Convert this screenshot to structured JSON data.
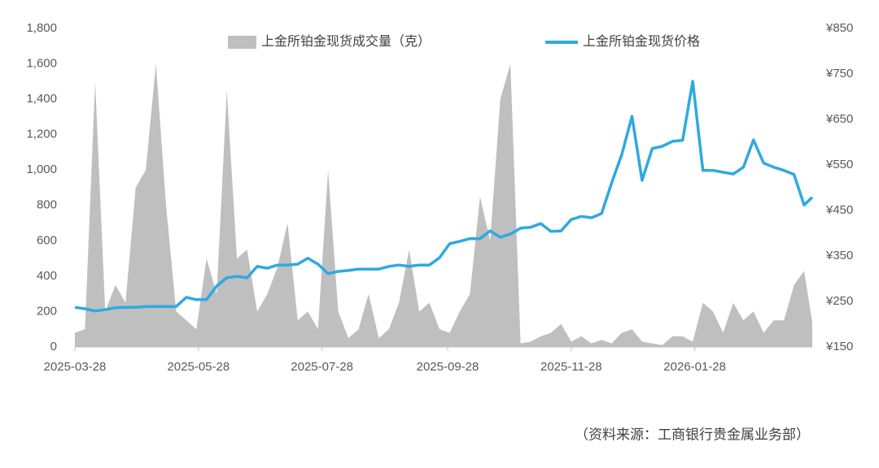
{
  "chart_data": {
    "type": "area-line",
    "x": [
      "2025-03-28",
      "2025-04-02",
      "2025-04-07",
      "2025-04-12",
      "2025-04-17",
      "2025-04-22",
      "2025-04-27",
      "2025-05-02",
      "2025-05-07",
      "2025-05-12",
      "2025-05-17",
      "2025-05-22",
      "2025-05-27",
      "2025-06-01",
      "2025-06-06",
      "2025-06-11",
      "2025-06-16",
      "2025-06-21",
      "2025-06-26",
      "2025-07-01",
      "2025-07-06",
      "2025-07-11",
      "2025-07-16",
      "2025-07-21",
      "2025-07-26",
      "2025-07-31",
      "2025-08-05",
      "2025-08-10",
      "2025-08-15",
      "2025-08-20",
      "2025-08-25",
      "2025-08-30",
      "2025-09-04",
      "2025-09-09",
      "2025-09-14",
      "2025-09-19",
      "2025-09-24",
      "2025-09-29",
      "2025-10-04",
      "2025-10-09",
      "2025-10-14",
      "2025-10-19",
      "2025-10-24",
      "2025-10-29",
      "2025-11-03",
      "2025-11-08",
      "2025-11-13",
      "2025-11-18",
      "2025-11-23",
      "2025-11-28",
      "2025-12-03",
      "2025-12-08",
      "2025-12-13",
      "2025-12-18",
      "2025-12-23",
      "2025-12-28",
      "2026-01-02",
      "2026-01-07",
      "2026-01-12",
      "2026-01-17",
      "2026-01-22",
      "2026-01-27",
      "2026-02-01",
      "2026-02-06",
      "2026-02-11",
      "2026-02-16",
      "2026-02-21",
      "2026-02-26",
      "2026-03-03",
      "2026-03-08",
      "2026-03-13",
      "2026-03-18",
      "2026-03-23",
      "2026-03-27"
    ],
    "series": [
      {
        "name": "上金所铂金现货成交量（克）",
        "color": "#bfbfbf",
        "kind": "area",
        "values": [
          80,
          100,
          1500,
          200,
          350,
          250,
          900,
          1000,
          1600,
          800,
          200,
          150,
          100,
          500,
          300,
          1450,
          500,
          550,
          200,
          300,
          450,
          700,
          150,
          200,
          100,
          1000,
          200,
          50,
          100,
          300,
          50,
          100,
          250,
          550,
          200,
          250,
          100,
          80,
          200,
          300,
          850,
          600,
          1400,
          1600,
          20,
          30,
          60,
          80,
          130,
          30,
          60,
          20,
          40,
          20,
          80,
          100,
          30,
          20,
          10,
          60,
          60,
          30,
          250,
          200,
          80,
          250,
          150,
          200,
          80,
          150,
          150,
          350,
          430,
          140
        ]
      },
      {
        "name": "上金所铂金现货价格",
        "color": "#2fa9e0",
        "kind": "line",
        "axis": "y2",
        "values": [
          237,
          234,
          229,
          232,
          236,
          237,
          237,
          239,
          239,
          239,
          239,
          259,
          254,
          254,
          284,
          302,
          305,
          302,
          327,
          323,
          330,
          330,
          332,
          345,
          332,
          311,
          316,
          318,
          321,
          321,
          321,
          327,
          330,
          327,
          330,
          330,
          346,
          377,
          382,
          388,
          388,
          405,
          391,
          398,
          411,
          413,
          421,
          404,
          405,
          430,
          437,
          434,
          443,
          511,
          573,
          657,
          516,
          586,
          591,
          602,
          604,
          734,
          538,
          538,
          534,
          530,
          545,
          605,
          554,
          545,
          538,
          529,
          462,
          479
        ]
      }
    ],
    "xlim": [
      "2025-03-28",
      "2026-03-27"
    ],
    "xticks": [
      "2025-03-28",
      "2025-05-28",
      "2025-07-28",
      "2025-09-28",
      "2025-11-28",
      "2026-01-28"
    ],
    "ylim": [
      0,
      1800
    ],
    "yticks": [
      0,
      200,
      400,
      600,
      800,
      {
        "value": 1000,
        "label": "1,000"
      },
      {
        "value": 1200,
        "label": "1,200"
      },
      {
        "value": 1400,
        "label": "1,400"
      },
      {
        "value": 1600,
        "label": "1,600"
      },
      {
        "value": 1800,
        "label": "1,800"
      }
    ],
    "y2lim": [
      150,
      850
    ],
    "y2ticks": [
      {
        "value": 150,
        "label": "¥150"
      },
      {
        "value": 250,
        "label": "¥250"
      },
      {
        "value": 350,
        "label": "¥350"
      },
      {
        "value": 450,
        "label": "¥450"
      },
      {
        "value": 550,
        "label": "¥550"
      },
      {
        "value": 650,
        "label": "¥650"
      },
      {
        "value": 750,
        "label": "¥750"
      },
      {
        "value": 850,
        "label": "¥850"
      }
    ],
    "legend": "top",
    "note": "（资料来源：工商银行贵金属业务部）"
  }
}
